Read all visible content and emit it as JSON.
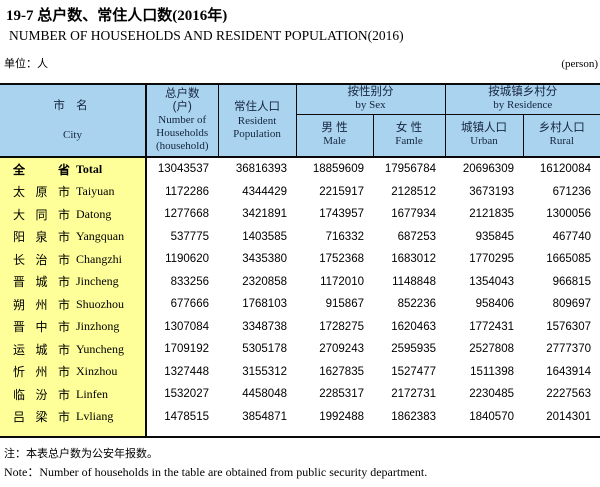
{
  "page": {
    "title_zh": "19-7 总户数、常住人口数(2016年)",
    "title_en": "NUMBER OF HOUSEHOLDS AND RESIDENT POPULATION(2016)",
    "unit_zh": "单位：人",
    "unit_en": "(person)",
    "note_zh": "注：本表总户数为公安年报数。",
    "note_en": "Note：Number of households in the table are obtained from public security department."
  },
  "colors": {
    "header_bg": "#a9d3ee",
    "city_column_bg": "#ffff99",
    "border": "#0a0a0a",
    "header_text": "#16253f"
  },
  "table": {
    "header": {
      "city": {
        "zh": "市 名",
        "en": "City"
      },
      "households": {
        "zh": "总户数\n(户)",
        "en": "Number of\nHouseholds\n(household)"
      },
      "population": {
        "zh": "常住人口",
        "en": "Resident\nPopulation"
      },
      "by_sex": {
        "zh": "按性别分",
        "en": "by Sex"
      },
      "male": {
        "zh": "男 性",
        "en": "Male"
      },
      "female": {
        "zh": "女 性",
        "en": "Famle"
      },
      "by_residence": {
        "zh": "按城镇乡村分",
        "en": "by Residence"
      },
      "urban": {
        "zh": "城镇人口",
        "en": "Urban"
      },
      "rural": {
        "zh": "乡村人口",
        "en": "Rural"
      }
    },
    "rows": [
      {
        "zh": "全 省",
        "en": "Total",
        "households": "13043537",
        "population": "36816393",
        "male": "18859609",
        "female": "17956784",
        "urban": "20696309",
        "rural": "16120084",
        "bold": true
      },
      {
        "zh": "太 原 市",
        "en": "Taiyuan",
        "households": "1172286",
        "population": "4344429",
        "male": "2215917",
        "female": "2128512",
        "urban": "3673193",
        "rural": "671236"
      },
      {
        "zh": "大 同 市",
        "en": "Datong",
        "households": "1277668",
        "population": "3421891",
        "male": "1743957",
        "female": "1677934",
        "urban": "2121835",
        "rural": "1300056"
      },
      {
        "zh": "阳 泉 市",
        "en": "Yangquan",
        "households": "537775",
        "population": "1403585",
        "male": "716332",
        "female": "687253",
        "urban": "935845",
        "rural": "467740"
      },
      {
        "zh": "长 治 市",
        "en": "Changzhi",
        "households": "1190620",
        "population": "3435380",
        "male": "1752368",
        "female": "1683012",
        "urban": "1770295",
        "rural": "1665085"
      },
      {
        "zh": "晋 城 市",
        "en": "Jincheng",
        "households": "833256",
        "population": "2320858",
        "male": "1172010",
        "female": "1148848",
        "urban": "1354043",
        "rural": "966815"
      },
      {
        "zh": "朔 州 市",
        "en": "Shuozhou",
        "households": "677666",
        "population": "1768103",
        "male": "915867",
        "female": "852236",
        "urban": "958406",
        "rural": "809697"
      },
      {
        "zh": "晋 中 市",
        "en": "Jinzhong",
        "households": "1307084",
        "population": "3348738",
        "male": "1728275",
        "female": "1620463",
        "urban": "1772431",
        "rural": "1576307"
      },
      {
        "zh": "运 城 市",
        "en": "Yuncheng",
        "households": "1709192",
        "population": "5305178",
        "male": "2709243",
        "female": "2595935",
        "urban": "2527808",
        "rural": "2777370"
      },
      {
        "zh": "忻 州 市",
        "en": "Xinzhou",
        "households": "1327448",
        "population": "3155312",
        "male": "1627835",
        "female": "1527477",
        "urban": "1511398",
        "rural": "1643914"
      },
      {
        "zh": "临 汾 市",
        "en": "Linfen",
        "households": "1532027",
        "population": "4458048",
        "male": "2285317",
        "female": "2172731",
        "urban": "2230485",
        "rural": "2227563"
      },
      {
        "zh": "吕 梁 市",
        "en": "Lvliang",
        "households": "1478515",
        "population": "3854871",
        "male": "1992488",
        "female": "1862383",
        "urban": "1840570",
        "rural": "2014301"
      }
    ]
  }
}
